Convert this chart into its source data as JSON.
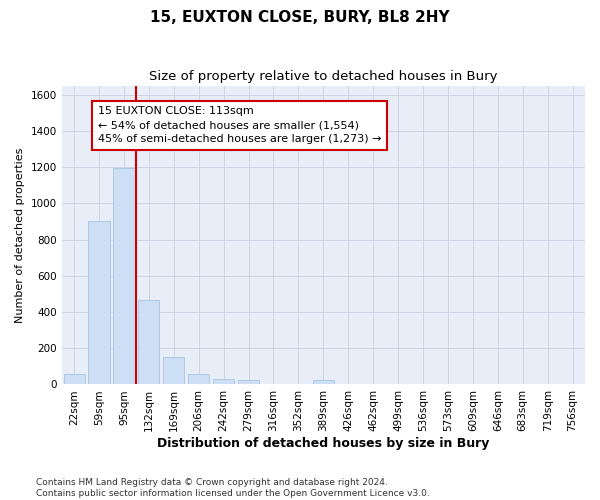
{
  "title": "15, EUXTON CLOSE, BURY, BL8 2HY",
  "subtitle": "Size of property relative to detached houses in Bury",
  "xlabel": "Distribution of detached houses by size in Bury",
  "ylabel": "Number of detached properties",
  "categories": [
    "22sqm",
    "59sqm",
    "95sqm",
    "132sqm",
    "169sqm",
    "206sqm",
    "242sqm",
    "279sqm",
    "316sqm",
    "352sqm",
    "389sqm",
    "426sqm",
    "462sqm",
    "499sqm",
    "536sqm",
    "573sqm",
    "609sqm",
    "646sqm",
    "683sqm",
    "719sqm",
    "756sqm"
  ],
  "values": [
    55,
    900,
    1195,
    465,
    150,
    60,
    28,
    25,
    0,
    0,
    25,
    0,
    0,
    0,
    0,
    0,
    0,
    0,
    0,
    0,
    0
  ],
  "bar_color": "#ccdff5",
  "bar_edge_color": "#a8c4e0",
  "vline_color": "#cc0000",
  "vline_pos": 2.5,
  "annotation_text": "15 EUXTON CLOSE: 113sqm\n← 54% of detached houses are smaller (1,554)\n45% of semi-detached houses are larger (1,273) →",
  "annotation_box_facecolor": "#ffffff",
  "annotation_box_edgecolor": "#cc0000",
  "ylim": [
    0,
    1650
  ],
  "yticks": [
    0,
    200,
    400,
    600,
    800,
    1000,
    1200,
    1400,
    1600
  ],
  "bg_color": "#e8eef8",
  "grid_color": "#c8d0e0",
  "footnote": "Contains HM Land Registry data © Crown copyright and database right 2024.\nContains public sector information licensed under the Open Government Licence v3.0.",
  "title_fontsize": 11,
  "subtitle_fontsize": 9.5,
  "xlabel_fontsize": 9,
  "ylabel_fontsize": 8,
  "tick_fontsize": 7.5,
  "annot_fontsize": 8,
  "footnote_fontsize": 6.5
}
